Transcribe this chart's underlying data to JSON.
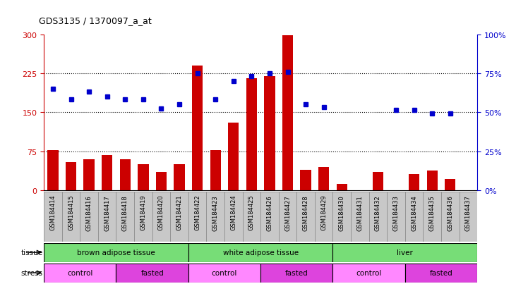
{
  "title": "GDS3135 / 1370097_a_at",
  "samples": [
    "GSM184414",
    "GSM184415",
    "GSM184416",
    "GSM184417",
    "GSM184418",
    "GSM184419",
    "GSM184420",
    "GSM184421",
    "GSM184422",
    "GSM184423",
    "GSM184424",
    "GSM184425",
    "GSM184426",
    "GSM184427",
    "GSM184428",
    "GSM184429",
    "GSM184430",
    "GSM184431",
    "GSM184432",
    "GSM184433",
    "GSM184434",
    "GSM184435",
    "GSM184436",
    "GSM184437"
  ],
  "count": [
    78,
    55,
    60,
    68,
    60,
    50,
    35,
    50,
    240,
    78,
    130,
    215,
    220,
    298,
    40,
    45,
    12,
    null,
    35,
    null,
    32,
    38,
    22,
    null
  ],
  "count_absent": [
    false,
    false,
    false,
    false,
    false,
    false,
    false,
    false,
    false,
    false,
    false,
    false,
    false,
    false,
    false,
    false,
    false,
    true,
    false,
    true,
    false,
    false,
    false,
    true
  ],
  "rank_left": [
    195,
    175,
    190,
    180,
    175,
    175,
    158,
    165,
    225,
    175,
    210,
    220,
    225,
    228,
    165,
    160,
    null,
    null,
    null,
    155,
    155,
    148,
    148,
    null
  ],
  "rank_absent": [
    false,
    false,
    false,
    false,
    false,
    false,
    false,
    false,
    false,
    false,
    false,
    false,
    false,
    false,
    false,
    false,
    true,
    true,
    true,
    false,
    false,
    false,
    false,
    true
  ],
  "tissue_groups": [
    {
      "label": "brown adipose tissue",
      "start": 0,
      "end": 8
    },
    {
      "label": "white adipose tissue",
      "start": 8,
      "end": 16
    },
    {
      "label": "liver",
      "start": 16,
      "end": 24
    }
  ],
  "stress_groups": [
    {
      "label": "control",
      "start": 0,
      "end": 4
    },
    {
      "label": "fasted",
      "start": 4,
      "end": 8
    },
    {
      "label": "control",
      "start": 8,
      "end": 12
    },
    {
      "label": "fasted",
      "start": 12,
      "end": 16
    },
    {
      "label": "control",
      "start": 16,
      "end": 20
    },
    {
      "label": "fasted",
      "start": 20,
      "end": 24
    }
  ],
  "ylim_left": [
    0,
    300
  ],
  "ylim_right": [
    0,
    100
  ],
  "yticks_left": [
    0,
    75,
    150,
    225,
    300
  ],
  "yticks_right": [
    0,
    25,
    50,
    75,
    100
  ],
  "bar_color": "#CC0000",
  "bar_absent_color": "#FFB6C1",
  "rank_color": "#0000CC",
  "rank_absent_color": "#AAAAEE",
  "tissue_color": "#77DD77",
  "stress_control_color": "#FF88FF",
  "stress_fasted_color": "#DD44DD",
  "label_area_bg": "#C8C8C8",
  "left_axis_color": "#CC0000",
  "right_axis_color": "#0000CC"
}
